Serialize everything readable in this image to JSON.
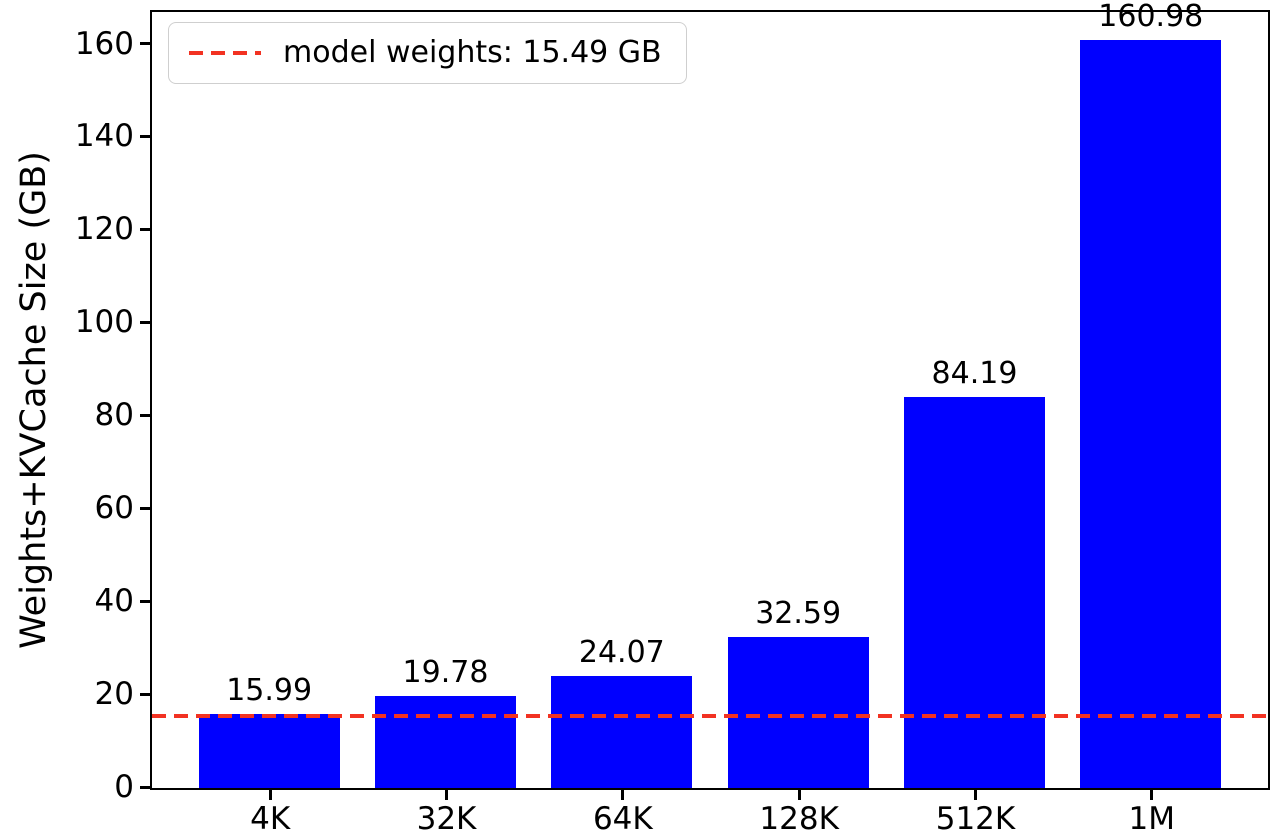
{
  "chart_data": {
    "type": "bar",
    "title": "",
    "xlabel": "",
    "ylabel": "Weights+KVCache Size (GB)",
    "categories": [
      "4K",
      "32K",
      "64K",
      "128K",
      "512K",
      "1M"
    ],
    "values": [
      15.99,
      19.78,
      24.07,
      32.59,
      84.19,
      160.98
    ],
    "ylim": [
      0,
      167
    ],
    "yticks": [
      0,
      20,
      40,
      60,
      80,
      100,
      120,
      140,
      160
    ],
    "grid": false,
    "bar_color": "#0000ff",
    "legend_position": "upper left",
    "reference_line": {
      "value": 15.49,
      "style": "dashed",
      "color": "#f23222",
      "legend_label": "model weights: 15.49 GB"
    }
  }
}
